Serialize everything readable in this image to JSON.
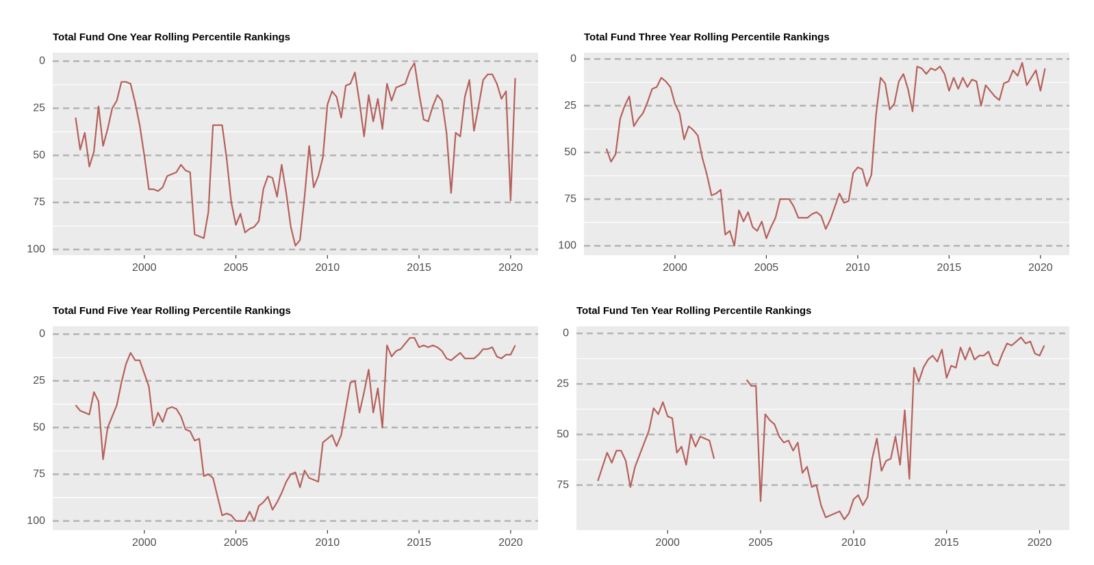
{
  "chart_data": [
    {
      "type": "line",
      "title": "Total Fund One Year Rolling Percentile Rankings",
      "color": "#b5605a",
      "x": [
        1996.25,
        1996.5,
        1996.75,
        1997,
        1997.25,
        1997.5,
        1997.75,
        1998,
        1998.25,
        1998.5,
        1998.75,
        1999,
        1999.25,
        1999.5,
        1999.75,
        2000,
        2000.25,
        2000.5,
        2000.75,
        2001,
        2001.25,
        2001.5,
        2001.75,
        2002,
        2002.25,
        2002.5,
        2002.75,
        2003,
        2003.25,
        2003.5,
        2003.75,
        2004,
        2004.25,
        2004.5,
        2004.75,
        2005,
        2005.25,
        2005.5,
        2005.75,
        2006,
        2006.25,
        2006.5,
        2006.75,
        2007,
        2007.25,
        2007.5,
        2007.75,
        2008,
        2008.25,
        2008.5,
        2008.75,
        2009,
        2009.25,
        2009.5,
        2009.75,
        2010,
        2010.25,
        2010.5,
        2010.75,
        2011,
        2011.25,
        2011.5,
        2011.75,
        2012,
        2012.25,
        2012.5,
        2012.75,
        2013,
        2013.25,
        2013.5,
        2013.75,
        2014,
        2014.25,
        2014.5,
        2014.75,
        2015,
        2015.25,
        2015.5,
        2015.75,
        2016,
        2016.25,
        2016.5,
        2016.75,
        2017,
        2017.25,
        2017.5,
        2017.75,
        2018,
        2018.25,
        2018.5,
        2018.75,
        2019,
        2019.25,
        2019.5,
        2019.75,
        2020,
        2020.25
      ],
      "values": [
        30,
        47,
        38,
        56,
        48,
        24,
        45,
        36,
        25,
        21,
        11,
        11,
        12,
        22,
        34,
        50,
        68,
        68,
        69,
        67,
        61,
        60,
        59,
        55,
        58,
        59,
        92,
        93,
        94,
        80,
        34,
        34,
        34,
        52,
        75,
        87,
        81,
        91,
        89,
        88,
        85,
        68,
        61,
        62,
        72,
        55,
        70,
        88,
        98,
        95,
        72,
        45,
        67,
        61,
        51,
        23,
        16,
        19,
        30,
        13,
        12,
        6,
        22,
        40,
        18,
        32,
        20,
        36,
        12,
        21,
        14,
        13,
        12,
        5,
        1,
        17,
        31,
        32,
        24,
        18,
        21,
        38,
        70,
        38,
        40,
        19,
        10,
        37,
        24,
        10,
        7,
        7,
        12,
        20,
        16,
        74,
        9
      ],
      "xlim": [
        1995.0,
        2021.5
      ],
      "xticks": [
        2000,
        2005,
        2010,
        2015,
        2020
      ],
      "ylim": [
        103,
        -4.5
      ],
      "yticks": [
        0,
        25,
        50,
        75,
        100
      ],
      "grid": true
    },
    {
      "type": "line",
      "title": "Total Fund Three Year Rolling Percentile Rankings",
      "color": "#b5605a",
      "x": [
        1996.25,
        1996.5,
        1996.75,
        1997,
        1997.25,
        1997.5,
        1997.75,
        1998,
        1998.25,
        1998.5,
        1998.75,
        1999,
        1999.25,
        1999.5,
        1999.75,
        2000,
        2000.25,
        2000.5,
        2000.75,
        2001,
        2001.25,
        2001.5,
        2001.75,
        2002,
        2002.25,
        2002.5,
        2002.75,
        2003,
        2003.25,
        2003.5,
        2003.75,
        2004,
        2004.25,
        2004.5,
        2004.75,
        2005,
        2005.25,
        2005.5,
        2005.75,
        2006,
        2006.25,
        2006.5,
        2006.75,
        2007,
        2007.25,
        2007.5,
        2007.75,
        2008,
        2008.25,
        2008.5,
        2008.75,
        2009,
        2009.25,
        2009.5,
        2009.75,
        2010,
        2010.25,
        2010.5,
        2010.75,
        2011,
        2011.25,
        2011.5,
        2011.75,
        2012,
        2012.25,
        2012.5,
        2012.75,
        2013,
        2013.25,
        2013.5,
        2013.75,
        2014,
        2014.25,
        2014.5,
        2014.75,
        2015,
        2015.25,
        2015.5,
        2015.75,
        2016,
        2016.25,
        2016.5,
        2016.75,
        2017,
        2017.25,
        2017.5,
        2017.75,
        2018,
        2018.25,
        2018.5,
        2018.75,
        2019,
        2019.25,
        2019.5,
        2019.75,
        2020,
        2020.25
      ],
      "values": [
        48,
        55,
        51,
        32,
        25,
        20,
        36,
        32,
        29,
        23,
        16,
        15,
        10,
        12,
        15,
        24,
        29,
        43,
        36,
        38,
        41,
        53,
        62,
        73,
        72,
        70,
        94,
        92,
        100,
        81,
        87,
        82,
        90,
        92,
        87,
        96,
        90,
        85,
        75,
        75,
        75,
        79,
        85,
        85,
        85,
        83,
        82,
        84,
        91,
        86,
        79,
        72,
        77,
        76,
        61,
        58,
        59,
        68,
        62,
        30,
        10,
        13,
        27,
        24,
        12,
        8,
        16,
        28,
        4,
        5,
        8,
        5,
        6,
        4,
        8,
        17,
        10,
        16,
        10,
        15,
        11,
        12,
        25,
        14,
        17,
        20,
        22,
        13,
        12,
        6,
        9,
        2,
        14,
        10,
        6,
        17,
        5
      ],
      "xlim": [
        1995.02,
        2021.58
      ],
      "xticks": [
        2000,
        2005,
        2010,
        2015,
        2020
      ],
      "ylim": [
        105,
        -3.4
      ],
      "yticks": [
        0,
        25,
        50,
        75,
        100
      ],
      "grid": true
    },
    {
      "type": "line",
      "title": "Total Fund Five Year Rolling Percentile Rankings",
      "color": "#b5605a",
      "x": [
        1996.25,
        1996.5,
        1996.75,
        1997,
        1997.25,
        1997.5,
        1997.75,
        1998,
        1998.25,
        1998.5,
        1998.75,
        1999,
        1999.25,
        1999.5,
        1999.75,
        2000,
        2000.25,
        2000.5,
        2000.75,
        2001,
        2001.25,
        2001.5,
        2001.75,
        2002,
        2002.25,
        2002.5,
        2002.75,
        2003,
        2003.25,
        2003.5,
        2003.75,
        2004,
        2004.25,
        2004.5,
        2004.75,
        2005,
        2005.25,
        2005.5,
        2005.75,
        2006,
        2006.25,
        2006.5,
        2006.75,
        2007,
        2007.25,
        2007.5,
        2007.75,
        2008,
        2008.25,
        2008.5,
        2008.75,
        2009,
        2009.25,
        2009.5,
        2009.75,
        2010,
        2010.25,
        2010.5,
        2010.75,
        2011,
        2011.25,
        2011.5,
        2011.75,
        2012,
        2012.25,
        2012.5,
        2012.75,
        2013,
        2013.25,
        2013.5,
        2013.75,
        2014,
        2014.25,
        2014.5,
        2014.75,
        2015,
        2015.25,
        2015.5,
        2015.75,
        2016,
        2016.25,
        2016.5,
        2016.75,
        2017,
        2017.25,
        2017.5,
        2017.75,
        2018,
        2018.25,
        2018.5,
        2018.75,
        2019,
        2019.25,
        2019.5,
        2019.75,
        2020,
        2020.25
      ],
      "values": [
        38,
        41,
        42,
        43,
        31,
        36,
        67,
        50,
        44,
        38,
        26,
        16,
        10,
        14,
        14,
        21,
        28,
        49,
        42,
        47,
        40,
        39,
        40,
        44,
        51,
        52,
        57,
        56,
        76,
        75,
        77,
        87,
        97,
        96,
        97,
        100,
        100,
        100,
        95,
        100,
        92,
        90,
        87,
        94,
        90,
        85,
        79,
        75,
        74,
        82,
        73,
        77,
        78,
        79,
        58,
        56,
        54,
        60,
        54,
        40,
        26,
        25,
        42,
        31,
        19,
        42,
        29,
        50,
        6,
        12,
        9,
        8,
        5,
        2,
        2,
        7,
        6,
        7,
        6,
        7,
        9,
        13,
        14,
        12,
        10,
        13,
        13,
        13,
        11,
        8,
        8,
        7,
        12,
        13,
        11,
        11,
        6
      ],
      "xlim": [
        1995.0,
        2021.5
      ],
      "xticks": [
        2000,
        2005,
        2010,
        2015,
        2020
      ],
      "ylim": [
        104.9,
        -4.2
      ],
      "yticks": [
        0,
        25,
        50,
        75,
        100
      ],
      "grid": true
    },
    {
      "type": "line",
      "title": "Total Fund Ten Year Rolling Percentile Rankings",
      "color": "#b5605a",
      "x": [
        1996.25,
        1996.5,
        1996.75,
        1997,
        1997.25,
        1997.5,
        1997.75,
        1998,
        1998.25,
        1998.5,
        1998.75,
        1999,
        1999.25,
        1999.5,
        1999.75,
        2000,
        2000.25,
        2000.5,
        2000.75,
        2001,
        2001.25,
        2001.5,
        2001.75,
        2002,
        2002.25,
        2002.5,
        2002.75,
        2003,
        2003.25,
        2003.5,
        2003.75,
        2004,
        2004.25,
        2004.5,
        2004.75,
        2005,
        2005.25,
        2005.5,
        2005.75,
        2006,
        2006.25,
        2006.5,
        2006.75,
        2007,
        2007.25,
        2007.5,
        2007.75,
        2008,
        2008.25,
        2008.5,
        2008.75,
        2009,
        2009.25,
        2009.5,
        2009.75,
        2010,
        2010.25,
        2010.5,
        2010.75,
        2011,
        2011.25,
        2011.5,
        2011.75,
        2012,
        2012.25,
        2012.5,
        2012.75,
        2013,
        2013.25,
        2013.5,
        2013.75,
        2014,
        2014.25,
        2014.5,
        2014.75,
        2015,
        2015.25,
        2015.5,
        2015.75,
        2016,
        2016.25,
        2016.5,
        2016.75,
        2017,
        2017.25,
        2017.5,
        2017.75,
        2018,
        2018.25,
        2018.5,
        2018.75,
        2019,
        2019.25,
        2019.5,
        2019.75,
        2020,
        2020.25
      ],
      "values": [
        73,
        66,
        59,
        64,
        58,
        58,
        63,
        76,
        66,
        60,
        54,
        48,
        37,
        40,
        34,
        41,
        42,
        59,
        56,
        65,
        50,
        56,
        51,
        52,
        53,
        62,
        null,
        null,
        null,
        null,
        null,
        null,
        23,
        26,
        26,
        83,
        40,
        43,
        45,
        51,
        54,
        53,
        58,
        54,
        69,
        66,
        76,
        75,
        85,
        91,
        90,
        89,
        88,
        92,
        89,
        82,
        80,
        85,
        81,
        62,
        52,
        68,
        63,
        62,
        51,
        65,
        38,
        72,
        17,
        24,
        17,
        13,
        11,
        14,
        8,
        22,
        16,
        17,
        7,
        13,
        7,
        13,
        11,
        11,
        9,
        15,
        16,
        10,
        5,
        6,
        4,
        2,
        5,
        4,
        10,
        11,
        6
      ],
      "xlim": [
        1995.1,
        2021.6
      ],
      "xticks": [
        2000,
        2005,
        2010,
        2015,
        2020
      ],
      "ylim": [
        97.3,
        -3.5
      ],
      "yticks": [
        0,
        25,
        50,
        75
      ],
      "grid": true
    }
  ]
}
